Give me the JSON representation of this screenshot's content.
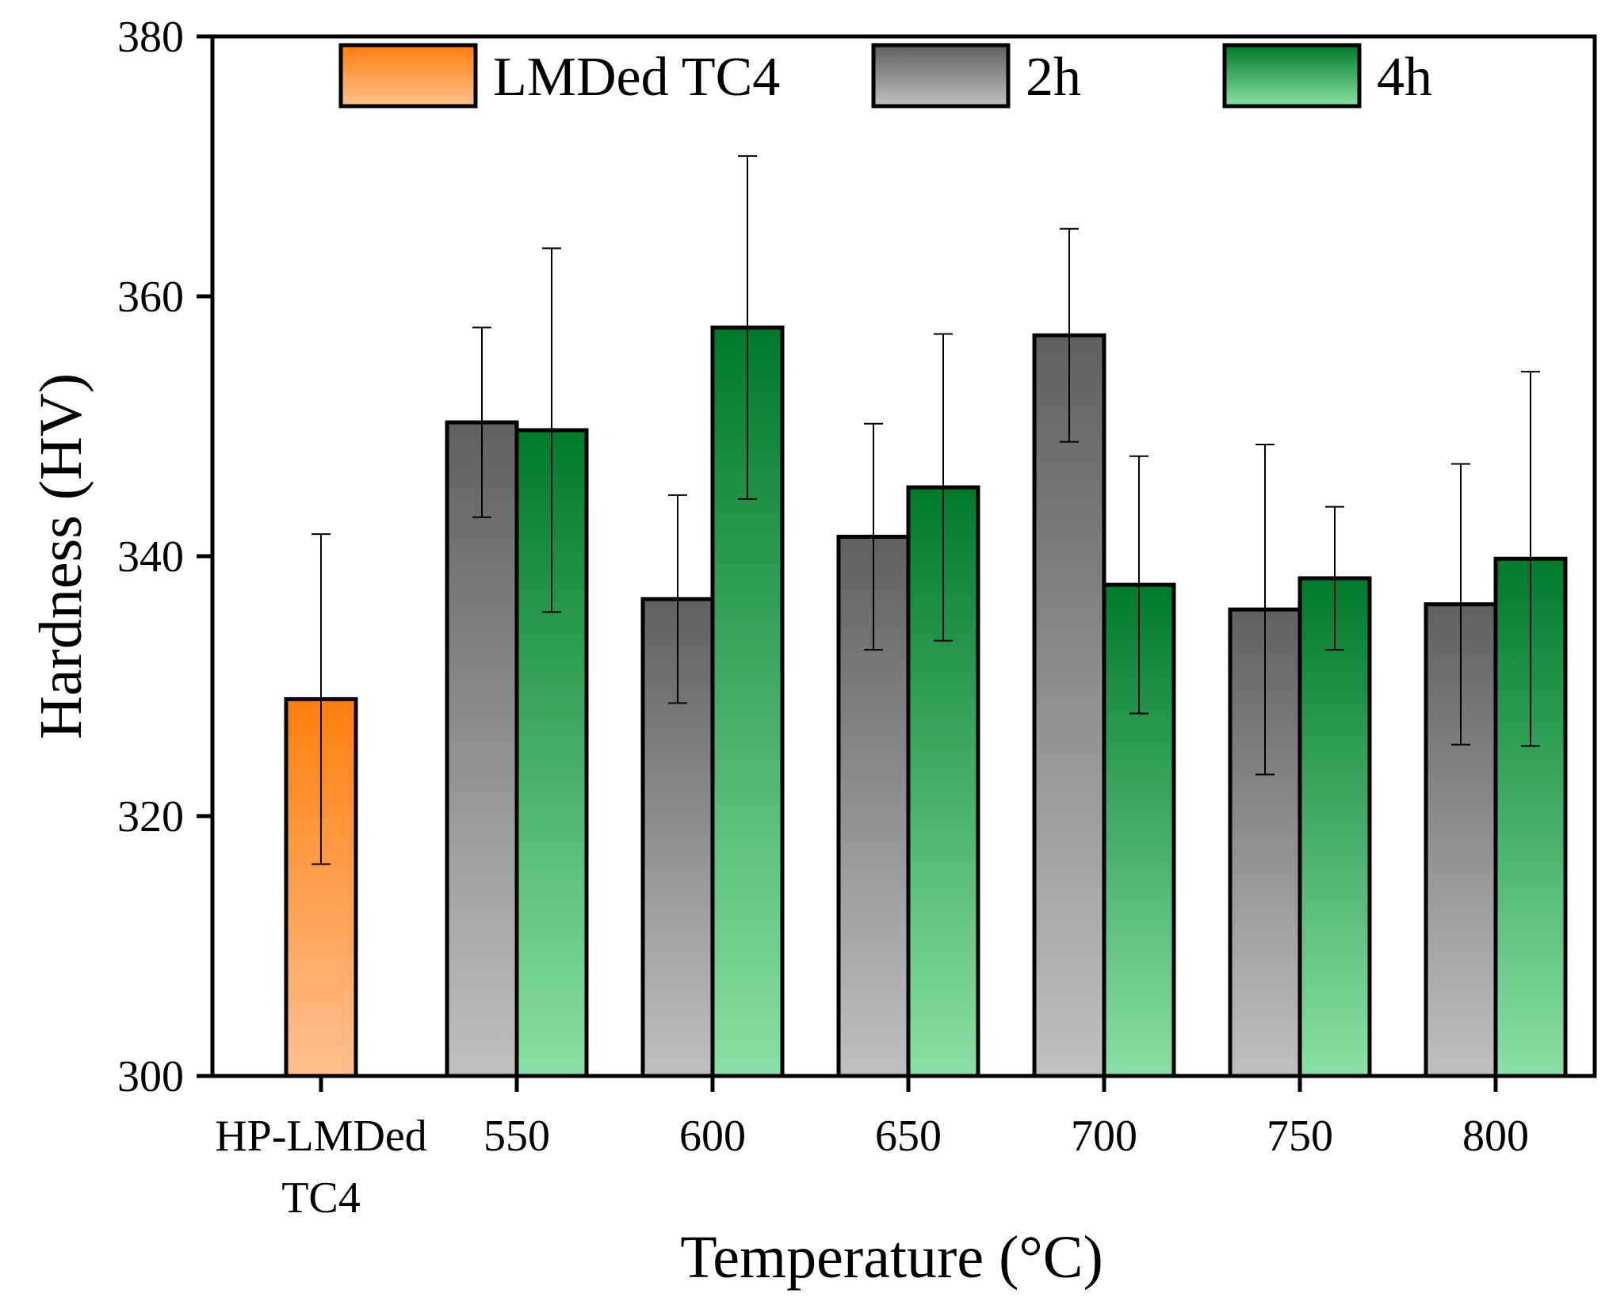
{
  "chart_data": {
    "type": "bar",
    "xlabel": "Temperature (°C)",
    "ylabel": "Hardness (HV)",
    "ylim": [
      300,
      380
    ],
    "yticks": [
      300,
      320,
      340,
      360,
      380
    ],
    "grid": false,
    "legend_position": "top",
    "categories": [
      [
        "HP-LMDed",
        "TC4"
      ],
      [
        "550"
      ],
      [
        "600"
      ],
      [
        "650"
      ],
      [
        "700"
      ],
      [
        "750"
      ],
      [
        "800"
      ]
    ],
    "series": [
      {
        "name": "LMDed TC4",
        "key": "lmded",
        "colors": [
          "#ff7f0e",
          "#ffc08f"
        ],
        "values": [
          329,
          null,
          null,
          null,
          null,
          null,
          null
        ],
        "errors": [
          12.7,
          null,
          null,
          null,
          null,
          null,
          null
        ]
      },
      {
        "name": "2h",
        "key": "h2",
        "colors": [
          "#606060",
          "#c0c0c0"
        ],
        "values": [
          null,
          350.3,
          336.7,
          341.5,
          357,
          335.9,
          336.3
        ],
        "errors": [
          null,
          7.3,
          8,
          8.7,
          8.2,
          12.7,
          10.8
        ]
      },
      {
        "name": "4h",
        "key": "h4",
        "colors": [
          "#007a2a",
          "#8ae0a6"
        ],
        "values": [
          null,
          349.7,
          357.6,
          345.3,
          337.8,
          338.3,
          339.8
        ],
        "errors": [
          null,
          14,
          13.2,
          11.8,
          9.9,
          5.5,
          14.4
        ]
      }
    ]
  }
}
